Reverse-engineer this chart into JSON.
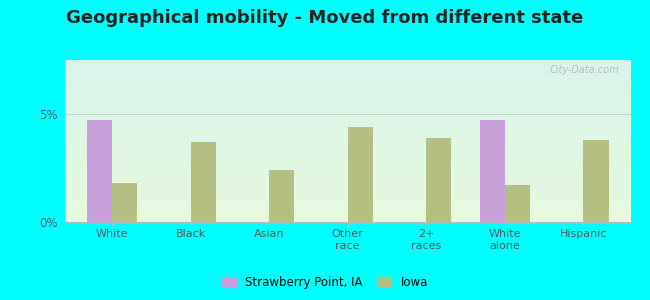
{
  "title": "Geographical mobility - Moved from different state",
  "categories": [
    "White",
    "Black",
    "Asian",
    "Other\nrace",
    "2+\nraces",
    "White\nalone",
    "Hispanic"
  ],
  "strawberry_values": [
    4.7,
    0.0,
    0.0,
    0.0,
    0.0,
    4.7,
    0.0
  ],
  "iowa_values": [
    1.8,
    3.7,
    2.4,
    4.4,
    3.9,
    1.7,
    3.8
  ],
  "strawberry_color": "#c9a0dc",
  "iowa_color": "#b5bf82",
  "ylim": [
    0,
    7.5
  ],
  "yticks": [
    0,
    5
  ],
  "outer_bg": "#00ffff",
  "title_fontsize": 13,
  "legend_label_1": "Strawberry Point, IA",
  "legend_label_2": "Iowa",
  "watermark": "City-Data.com"
}
